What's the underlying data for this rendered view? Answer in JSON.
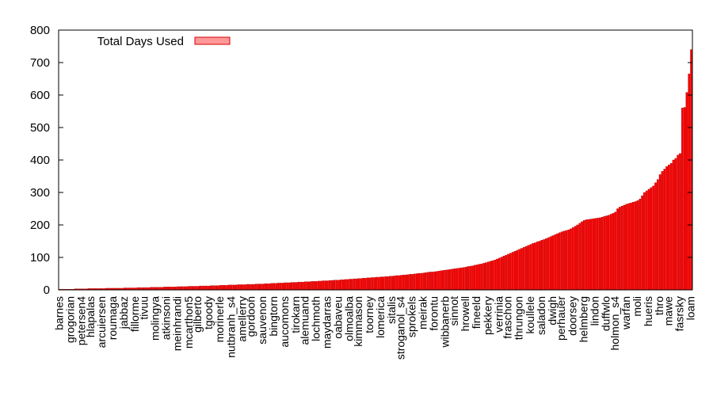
{
  "chart_data": {
    "type": "bar",
    "title": "",
    "xlabel": "",
    "ylabel": "",
    "ylim": [
      0,
      800
    ],
    "yticks": [
      0,
      100,
      200,
      300,
      400,
      500,
      600,
      700,
      800
    ],
    "grid": false,
    "legend_position": "top-left",
    "bar_color": "#ff0000",
    "bar_edge_color": "#b00000",
    "legend_swatch_color": "#ff9999",
    "series": [
      {
        "name": "Total Days Used",
        "values": [
          2,
          2,
          2,
          2,
          2,
          2,
          2,
          3,
          3,
          3,
          3,
          3,
          3,
          4,
          4,
          4,
          4,
          4,
          4,
          4,
          4,
          5,
          5,
          5,
          5,
          5,
          5,
          5,
          5,
          6,
          6,
          6,
          6,
          6,
          6,
          7,
          7,
          7,
          7,
          7,
          7,
          8,
          8,
          8,
          8,
          8,
          8,
          9,
          9,
          9,
          9,
          9,
          9,
          10,
          10,
          10,
          10,
          10,
          11,
          11,
          11,
          11,
          11,
          12,
          12,
          12,
          12,
          12,
          13,
          13,
          13,
          13,
          14,
          14,
          14,
          14,
          15,
          15,
          15,
          15,
          16,
          16,
          16,
          16,
          17,
          17,
          17,
          17,
          18,
          18,
          18,
          18,
          19,
          19,
          19,
          20,
          20,
          20,
          21,
          21,
          21,
          22,
          22,
          22,
          23,
          23,
          23,
          24,
          24,
          24,
          25,
          25,
          25,
          26,
          26,
          26,
          27,
          27,
          28,
          28,
          28,
          29,
          29,
          30,
          30,
          30,
          31,
          31,
          32,
          32,
          33,
          33,
          34,
          34,
          35,
          35,
          36,
          36,
          37,
          37,
          38,
          38,
          39,
          39,
          40,
          40,
          41,
          41,
          42,
          42,
          43,
          44,
          44,
          45,
          46,
          46,
          47,
          48,
          48,
          49,
          50,
          51,
          51,
          52,
          53,
          54,
          55,
          55,
          56,
          57,
          58,
          59,
          60,
          61,
          62,
          63,
          64,
          65,
          66,
          67,
          68,
          69,
          70,
          72,
          73,
          74,
          76,
          77,
          79,
          80,
          82,
          84,
          86,
          88,
          90,
          92,
          95,
          98,
          101,
          104,
          107,
          110,
          113,
          116,
          119,
          122,
          125,
          128,
          131,
          134,
          137,
          140,
          143,
          145,
          148,
          150,
          153,
          155,
          158,
          161,
          164,
          167,
          170,
          173,
          176,
          179,
          181,
          183,
          185,
          188,
          192,
          196,
          200,
          205,
          210,
          214,
          216,
          217,
          218,
          219,
          220,
          221,
          222,
          224,
          226,
          228,
          230,
          233,
          236,
          240,
          250,
          255,
          258,
          261,
          264,
          266,
          268,
          270,
          272,
          275,
          280,
          290,
          300,
          305,
          310,
          315,
          320,
          330,
          340,
          355,
          365,
          372,
          380,
          385,
          390,
          400,
          405,
          415,
          420,
          560,
          562,
          608,
          665,
          740
        ]
      }
    ],
    "categories_visible": [
      "barnes",
      "grogorian",
      "petersen4",
      "hlapalas",
      "arcuiersen",
      "roumaga",
      "jabbaz",
      "fillorme",
      "tivuu",
      "molingya",
      "atkinsoni",
      "meinhrandi",
      "mcarthon5",
      "gilberto",
      "tgoody",
      "morinerle",
      "nutbranh_s4",
      "amellerry",
      "gordoon",
      "sauvenon",
      "bingtorn",
      "aucomons",
      "tirokarn",
      "alemuand",
      "lochmoth",
      "maydarras",
      "oabaveu",
      "olmoalba",
      "kimmason",
      "toorney",
      "lomerica",
      "sitalis",
      "stroganol_s4",
      "sprokels",
      "meirak",
      "forontu",
      "wibbanerb",
      "sinnot",
      "hrowell",
      "fineeld",
      "pekkery",
      "verrinia",
      "fraschon",
      "thrungon",
      "koullele",
      "saladon",
      "dwigh",
      "perhauer",
      "doorsey",
      "helmberg",
      "lindon",
      "duffwlo",
      "holmon_s4",
      "warfan",
      "moli",
      "hueris",
      "thro",
      "mawe",
      "fasrsky",
      "loam"
    ]
  }
}
